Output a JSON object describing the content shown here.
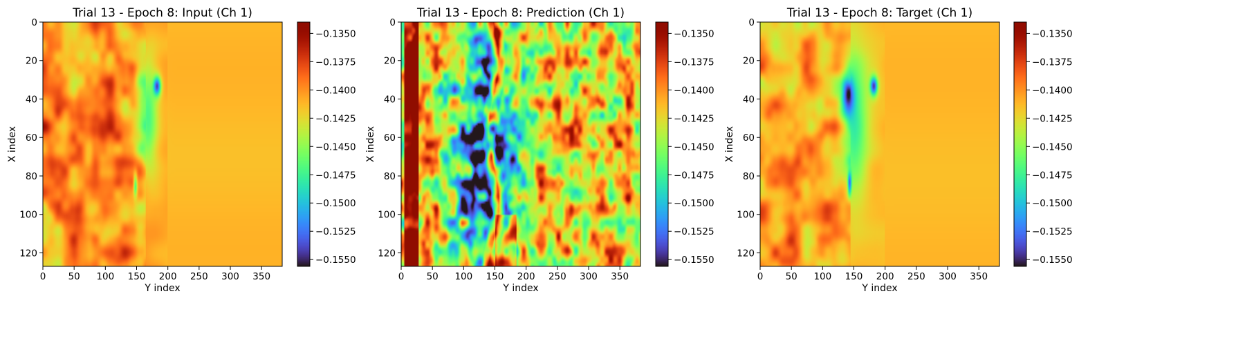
{
  "chart_data": [
    {
      "type": "heatmap",
      "title": "Trial 13 - Epoch 8: Input (Ch 1)",
      "xlabel": "Y index",
      "ylabel": "X index",
      "xlim": [
        0,
        383
      ],
      "ylim": [
        127,
        0
      ],
      "xticks": [
        "0",
        "50",
        "100",
        "150",
        "200",
        "250",
        "300",
        "350"
      ],
      "yticks": [
        "0",
        "20",
        "40",
        "60",
        "80",
        "100",
        "120"
      ],
      "colormap": "turbo",
      "colorbar": {
        "range": [
          -0.1556,
          -0.134
        ],
        "ticks": [
          "−0.1350",
          "−0.1375",
          "−0.1400",
          "−0.1425",
          "−0.1450",
          "−0.1475",
          "−0.1500",
          "−0.1525",
          "−0.1550"
        ]
      },
      "field": "input"
    },
    {
      "type": "heatmap",
      "title": "Trial 13 - Epoch 8: Prediction (Ch 1)",
      "xlabel": "Y index",
      "ylabel": "X index",
      "xlim": [
        0,
        383
      ],
      "ylim": [
        127,
        0
      ],
      "xticks": [
        "0",
        "50",
        "100",
        "150",
        "200",
        "250",
        "300",
        "350"
      ],
      "yticks": [
        "0",
        "20",
        "40",
        "60",
        "80",
        "100",
        "120"
      ],
      "colormap": "turbo",
      "colorbar": {
        "range": [
          -0.1556,
          -0.134
        ],
        "ticks": [
          "−0.1350",
          "−0.1375",
          "−0.1400",
          "−0.1425",
          "−0.1450",
          "−0.1475",
          "−0.1500",
          "−0.1525",
          "−0.1550"
        ]
      },
      "field": "prediction"
    },
    {
      "type": "heatmap",
      "title": "Trial 13 - Epoch 8: Target (Ch 1)",
      "xlabel": "Y index",
      "ylabel": "X index",
      "xlim": [
        0,
        383
      ],
      "ylim": [
        127,
        0
      ],
      "xticks": [
        "0",
        "50",
        "100",
        "150",
        "200",
        "250",
        "300",
        "350"
      ],
      "yticks": [
        "0",
        "20",
        "40",
        "60",
        "80",
        "100",
        "120"
      ],
      "colormap": "turbo",
      "colorbar": {
        "range": [
          -0.1556,
          -0.134
        ],
        "ticks": [
          "−0.1350",
          "−0.1375",
          "−0.1400",
          "−0.1425",
          "−0.1450",
          "−0.1475",
          "−0.1500",
          "−0.1525",
          "−0.1550"
        ]
      },
      "field": "target"
    }
  ]
}
